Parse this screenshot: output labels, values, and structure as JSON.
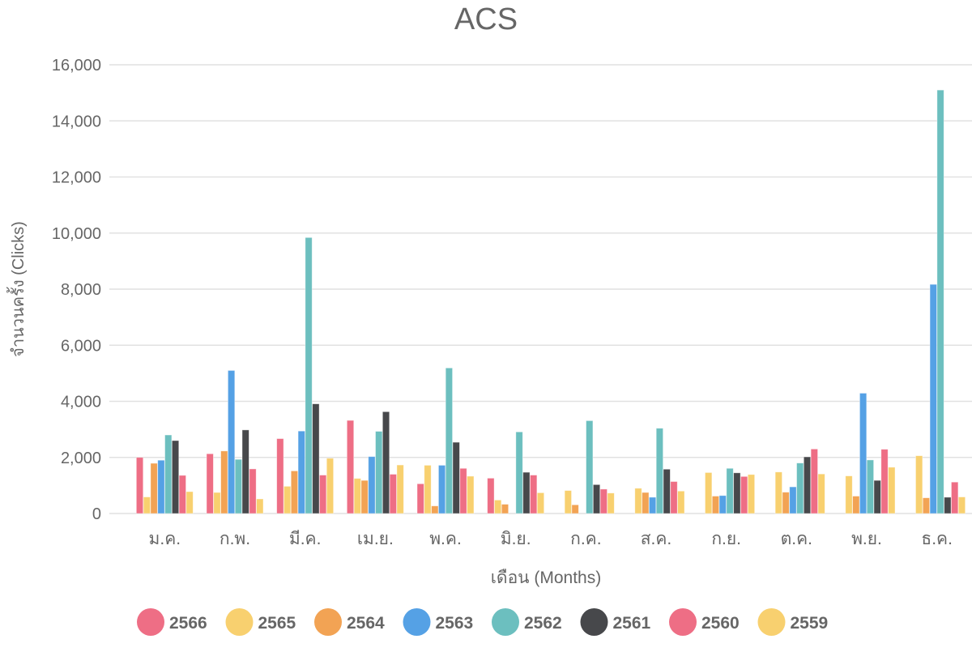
{
  "chart_data": {
    "type": "bar",
    "title": "ACS",
    "xlabel": "เดือน (Months)",
    "ylabel": "จำนวนครั้ง (Clicks)",
    "ylim": [
      0,
      16000
    ],
    "yticks": [
      "0",
      "2,000",
      "4,000",
      "6,000",
      "8,000",
      "10,000",
      "12,000",
      "14,000",
      "16,000"
    ],
    "grid": true,
    "legend_position": "bottom",
    "categories": [
      "ม.ค.",
      "ก.พ.",
      "มี.ค.",
      "เม.ย.",
      "พ.ค.",
      "มิ.ย.",
      "ก.ค.",
      "ส.ค.",
      "ก.ย.",
      "ต.ค.",
      "พ.ย.",
      "ธ.ค."
    ],
    "series": [
      {
        "name": "2566",
        "color": "#ee6e85",
        "values": [
          2000,
          2130,
          2670,
          3320,
          1060,
          1260,
          null,
          null,
          null,
          null,
          null,
          null
        ]
      },
      {
        "name": "2565",
        "color": "#f8d06f",
        "values": [
          590,
          750,
          970,
          1250,
          1720,
          480,
          820,
          900,
          1460,
          1480,
          1340,
          2060
        ]
      },
      {
        "name": "2564",
        "color": "#f2a354",
        "values": [
          1790,
          2230,
          1520,
          1180,
          270,
          330,
          310,
          750,
          620,
          760,
          620,
          560
        ]
      },
      {
        "name": "2563",
        "color": "#55a1e5",
        "values": [
          1900,
          5100,
          2940,
          2030,
          1720,
          null,
          null,
          580,
          640,
          950,
          4290,
          8170
        ]
      },
      {
        "name": "2562",
        "color": "#6cbfbf",
        "values": [
          2800,
          1930,
          9840,
          2930,
          5190,
          2910,
          3310,
          3040,
          1610,
          1800,
          1910,
          15100
        ]
      },
      {
        "name": "2561",
        "color": "#47484b",
        "values": [
          2600,
          2980,
          3910,
          3630,
          2540,
          1470,
          1030,
          1580,
          1450,
          2020,
          1180,
          580
        ]
      },
      {
        "name": "2560",
        "color": "#ee6e85",
        "values": [
          1360,
          1590,
          1370,
          1400,
          1610,
          1370,
          870,
          1140,
          1320,
          2300,
          2290,
          1120
        ]
      },
      {
        "name": "2559",
        "color": "#f8d06f",
        "values": [
          780,
          520,
          1970,
          1730,
          1330,
          740,
          730,
          800,
          1390,
          1410,
          1650,
          590
        ]
      }
    ]
  }
}
